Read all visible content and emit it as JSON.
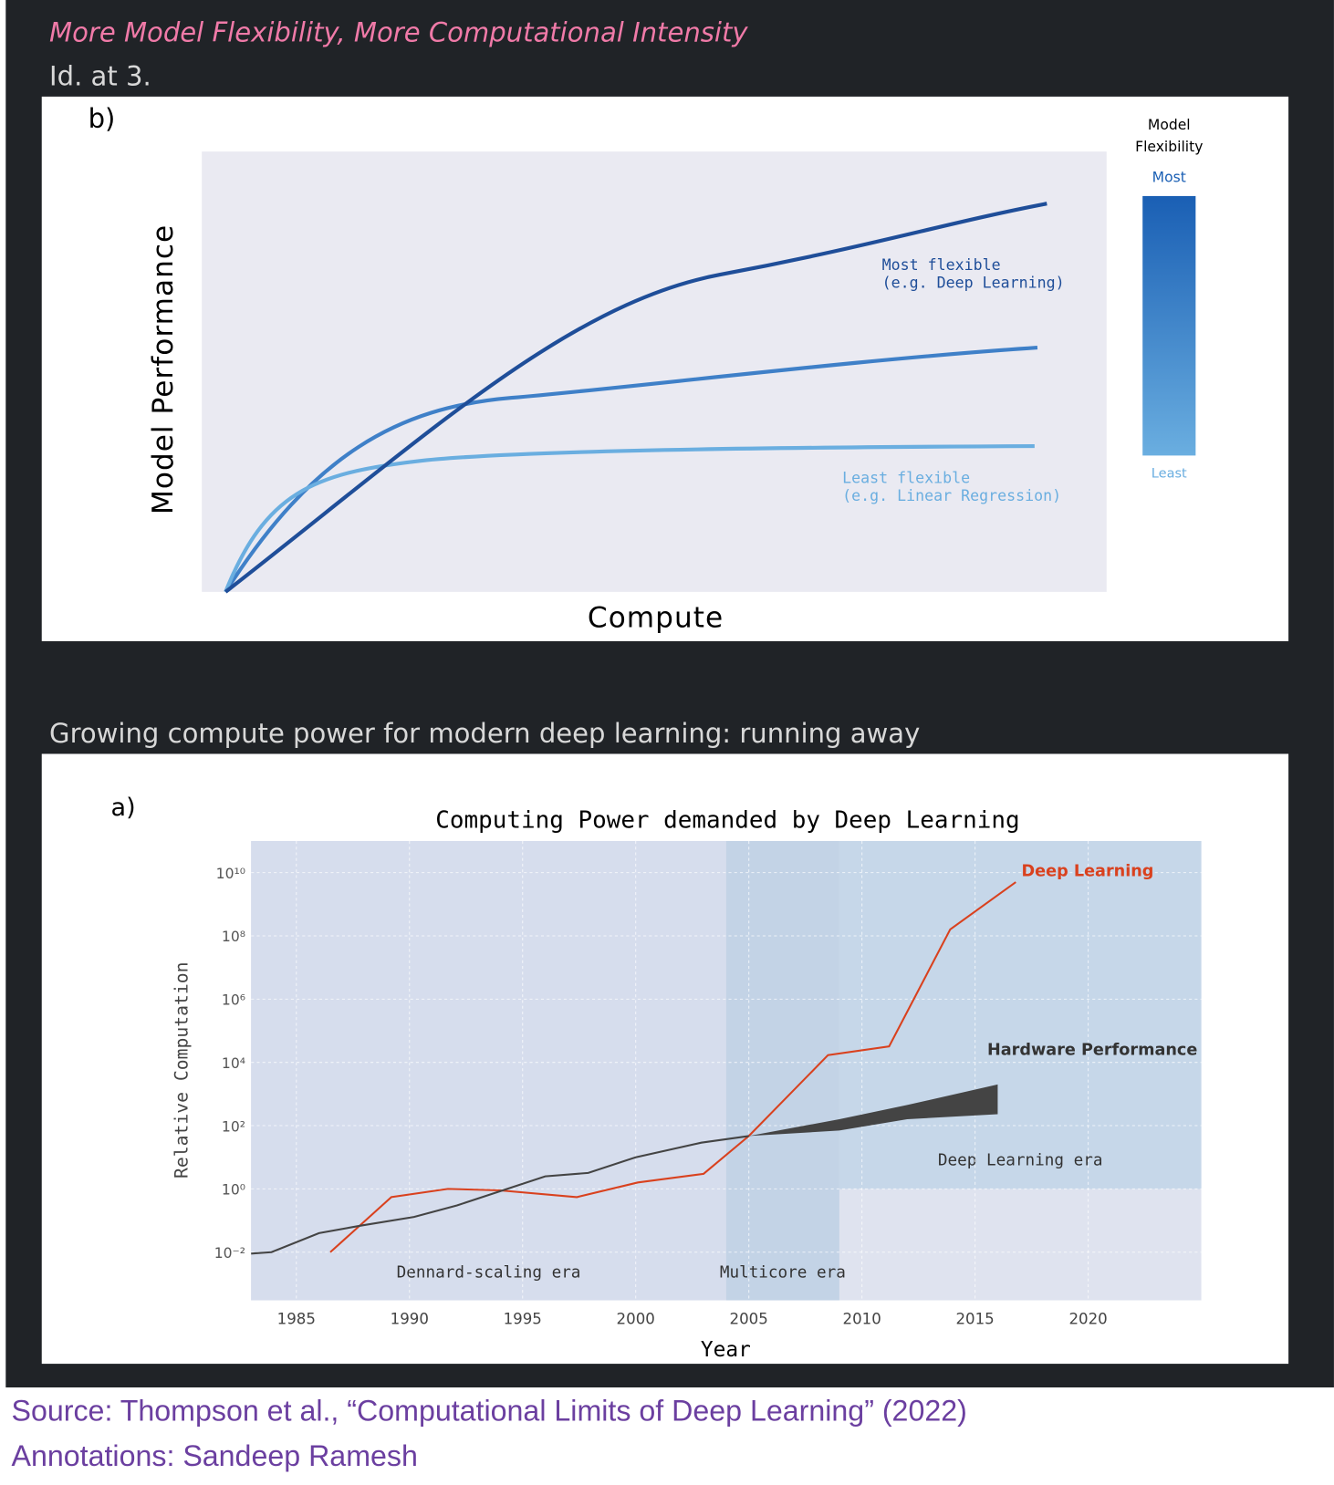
{
  "header": {
    "heading": "More Model Flexibility, More Computational Intensity",
    "citation": "Id. at 3."
  },
  "figure_b": {
    "panel_label": "b)",
    "y_label": "Model Performance",
    "x_label": "Compute",
    "annotations": [
      [
        "Most flexible",
        "(e.g. Deep Learning)"
      ],
      [
        "Least flexible",
        "(e.g. Linear Regression)"
      ]
    ],
    "colorbar": {
      "title": [
        "Model",
        "Flexibility"
      ],
      "top": "Most",
      "bottom": "Least"
    }
  },
  "section_heading": "Growing compute power for modern deep learning: running away",
  "chart_data": [
    {
      "type": "line",
      "panel_label": "a)",
      "title": "Computing Power demanded by Deep Learning",
      "x_label": "Year",
      "y_label": "Relative Computation",
      "log_y": true,
      "grid": true,
      "xlim": [
        1983,
        2025
      ],
      "xticks": [
        1985,
        1990,
        1995,
        2000,
        2005,
        2010,
        2015,
        2020
      ],
      "ylim": [
        0.0003,
        100000000000
      ],
      "yticks": [
        {
          "value": 0.01,
          "label": "10⁻²"
        },
        {
          "value": 1,
          "label": "10⁰"
        },
        {
          "value": 100,
          "label": "10²"
        },
        {
          "value": 10000,
          "label": "10⁴"
        },
        {
          "value": 1000000,
          "label": "10⁶"
        },
        {
          "value": 100000000,
          "label": "10⁸"
        },
        {
          "value": 10000000000,
          "label": "10¹⁰"
        }
      ],
      "regions": [
        {
          "label": "Dennard-scaling era",
          "x": [
            1983,
            2004
          ],
          "color": "#d6dded"
        },
        {
          "label": "Multicore era",
          "x": [
            2004,
            2009
          ],
          "color": "#c3d3e6"
        },
        {
          "label": "Deep Learning era",
          "x": [
            2009,
            2025
          ],
          "y": [
            1,
            100000000000
          ],
          "color": "#c6d7e9"
        }
      ],
      "series": [
        {
          "name": "Deep Learning",
          "color": "#d9411e",
          "x": [
            1986.5,
            1989.2,
            1991.7,
            1994,
            1997.4,
            2000.1,
            2003,
            2005,
            2008.5,
            2011.2,
            2013.9,
            2016.8
          ],
          "values": [
            0.01,
            0.55,
            1,
            0.9,
            0.55,
            1.6,
            3,
            47,
            17000,
            32000,
            160000000,
            5000000000
          ]
        },
        {
          "name": "Hardware Performance",
          "color": "#444444",
          "x": [
            1983,
            1983.9,
            1986,
            1987.9,
            1990.2,
            1992.1,
            1996,
            1997.9,
            2000,
            2002.9,
            2005
          ],
          "values": [
            0.009,
            0.01,
            0.04,
            0.07,
            0.13,
            0.3,
            2.5,
            3.2,
            10,
            29,
            47
          ],
          "band": {
            "x": [
              2005,
              2009,
              2012,
              2016
            ],
            "low": [
              47,
              70,
              160,
              230
            ],
            "high": [
              47,
              160,
              450,
              2000
            ]
          }
        }
      ]
    }
  ],
  "footer": {
    "source": "Source: Thompson et al., “Computational Limits of Deep Learning” (2022)",
    "annotations": "Annotations: Sandeep Ramesh"
  }
}
